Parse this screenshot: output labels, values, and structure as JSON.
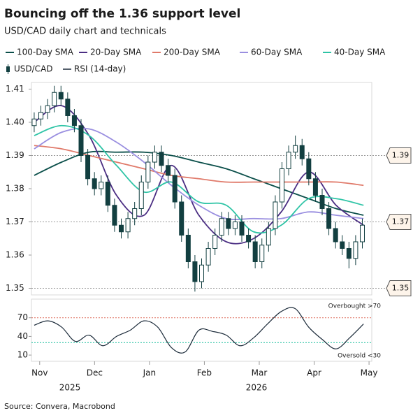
{
  "chart_data": [
    {
      "type": "candlestick",
      "title": "Bouncing off the 1.36 support level",
      "subtitle": "USD/CAD daily chart and technicals",
      "name": "USD/CAD",
      "color": "#123f40",
      "x": [
        -0.1,
        0.022,
        0.144,
        0.266,
        0.388,
        0.51,
        0.632,
        0.754,
        0.876,
        0.998,
        1.12,
        1.242,
        1.364,
        1.486,
        1.608,
        1.73,
        1.852,
        1.974,
        2.096,
        2.218,
        2.34,
        2.462,
        2.584,
        2.706,
        2.828,
        2.95,
        3.072,
        3.194,
        3.316,
        3.438,
        3.56,
        3.682,
        3.804,
        3.926,
        4.048,
        4.17,
        4.292,
        4.414,
        4.536,
        4.658,
        4.78,
        4.902,
        5.024,
        5.146,
        5.268,
        5.39,
        5.512,
        5.634,
        5.756,
        5.878
      ],
      "open": [
        1.399,
        1.401,
        1.403,
        1.405,
        1.409,
        1.407,
        1.402,
        1.399,
        1.39,
        1.383,
        1.38,
        1.382,
        1.375,
        1.369,
        1.367,
        1.371,
        1.374,
        1.382,
        1.388,
        1.391,
        1.387,
        1.384,
        1.376,
        1.366,
        1.358,
        1.352,
        1.357,
        1.362,
        1.366,
        1.371,
        1.368,
        1.37,
        1.366,
        1.364,
        1.358,
        1.363,
        1.368,
        1.376,
        1.386,
        1.391,
        1.393,
        1.389,
        1.383,
        1.378,
        1.374,
        1.368,
        1.364,
        1.362,
        1.359,
        1.364
      ],
      "high": [
        1.403,
        1.405,
        1.407,
        1.411,
        1.411,
        1.409,
        1.404,
        1.401,
        1.392,
        1.385,
        1.384,
        1.384,
        1.377,
        1.371,
        1.373,
        1.376,
        1.384,
        1.39,
        1.393,
        1.393,
        1.389,
        1.386,
        1.378,
        1.368,
        1.36,
        1.359,
        1.364,
        1.368,
        1.373,
        1.373,
        1.372,
        1.372,
        1.368,
        1.366,
        1.365,
        1.37,
        1.378,
        1.388,
        1.393,
        1.396,
        1.395,
        1.391,
        1.385,
        1.38,
        1.376,
        1.37,
        1.366,
        1.364,
        1.366,
        1.371
      ],
      "low": [
        1.397,
        1.399,
        1.401,
        1.403,
        1.405,
        1.4,
        1.397,
        1.388,
        1.381,
        1.378,
        1.378,
        1.373,
        1.367,
        1.365,
        1.365,
        1.369,
        1.372,
        1.38,
        1.386,
        1.385,
        1.382,
        1.374,
        1.364,
        1.356,
        1.349,
        1.35,
        1.355,
        1.36,
        1.364,
        1.366,
        1.366,
        1.364,
        1.362,
        1.356,
        1.356,
        1.361,
        1.366,
        1.374,
        1.384,
        1.389,
        1.387,
        1.381,
        1.376,
        1.372,
        1.366,
        1.362,
        1.36,
        1.356,
        1.357,
        1.362
      ],
      "close": [
        1.401,
        1.403,
        1.405,
        1.409,
        1.407,
        1.402,
        1.399,
        1.39,
        1.383,
        1.38,
        1.382,
        1.375,
        1.369,
        1.367,
        1.371,
        1.374,
        1.382,
        1.388,
        1.391,
        1.387,
        1.384,
        1.376,
        1.366,
        1.358,
        1.352,
        1.357,
        1.362,
        1.366,
        1.371,
        1.368,
        1.37,
        1.366,
        1.364,
        1.358,
        1.363,
        1.368,
        1.376,
        1.386,
        1.391,
        1.393,
        1.389,
        1.383,
        1.378,
        1.374,
        1.368,
        1.364,
        1.362,
        1.359,
        1.364,
        1.369
      ],
      "xlim": [
        -0.15,
        6.05
      ],
      "ylim": [
        1.348,
        1.412
      ],
      "yticks": [
        1.35,
        1.36,
        1.37,
        1.38,
        1.39,
        {
          "value": 1.4,
          "label": "1.40"
        },
        1.41
      ],
      "levels": [
        1.39,
        1.37,
        1.35
      ],
      "series": [
        {
          "name": "100-Day SMA",
          "color": "#0b4f4a",
          "x": [
            -0.1,
            0.4,
            0.9,
            1.4,
            1.9,
            2.4,
            2.9,
            3.4,
            3.9,
            4.4,
            4.9,
            5.4,
            5.9
          ],
          "values": [
            1.384,
            1.388,
            1.391,
            1.391,
            1.391,
            1.39,
            1.388,
            1.386,
            1.383,
            1.38,
            1.377,
            1.374,
            1.372
          ]
        },
        {
          "name": "20-Day SMA",
          "color": "#4b2e83",
          "x": [
            -0.1,
            0.4,
            0.9,
            1.4,
            1.9,
            2.4,
            2.9,
            3.4,
            3.9,
            4.4,
            4.9,
            5.4,
            5.9
          ],
          "values": [
            1.4,
            1.405,
            1.396,
            1.378,
            1.372,
            1.387,
            1.372,
            1.364,
            1.365,
            1.373,
            1.385,
            1.375,
            1.369
          ]
        },
        {
          "name": "200-Day SMA",
          "color": "#e07a6a",
          "x": [
            -0.1,
            0.4,
            0.9,
            1.4,
            1.9,
            2.4,
            2.9,
            3.4,
            3.9,
            4.4,
            4.9,
            5.4,
            5.9
          ],
          "values": [
            1.393,
            1.392,
            1.39,
            1.388,
            1.386,
            1.384,
            1.383,
            1.382,
            1.382,
            1.382,
            1.382,
            1.382,
            1.381
          ]
        },
        {
          "name": "60-Day SMA",
          "color": "#9a8fe0",
          "x": [
            -0.1,
            0.4,
            0.9,
            1.4,
            1.9,
            2.4,
            2.9,
            3.4,
            3.9,
            4.4,
            4.9,
            5.4,
            5.9
          ],
          "values": [
            1.392,
            1.397,
            1.398,
            1.394,
            1.388,
            1.381,
            1.375,
            1.371,
            1.371,
            1.371,
            1.373,
            1.372,
            1.371
          ]
        },
        {
          "name": "40-Day SMA",
          "color": "#2ec4a6",
          "x": [
            -0.1,
            0.4,
            0.9,
            1.4,
            1.9,
            2.4,
            2.9,
            3.4,
            3.9,
            4.4,
            4.9,
            5.4,
            5.9
          ],
          "values": [
            1.396,
            1.399,
            1.396,
            1.387,
            1.379,
            1.382,
            1.376,
            1.375,
            1.367,
            1.369,
            1.377,
            1.377,
            1.375
          ]
        }
      ]
    },
    {
      "type": "line",
      "series": [
        {
          "name": "RSI (14-day)",
          "color": "#1c2b3a",
          "x": [
            -0.1,
            0.15,
            0.4,
            0.65,
            0.9,
            1.15,
            1.4,
            1.65,
            1.9,
            2.15,
            2.4,
            2.65,
            2.9,
            3.15,
            3.4,
            3.65,
            3.9,
            4.15,
            4.4,
            4.65,
            4.9,
            5.15,
            5.4,
            5.65,
            5.9
          ],
          "values": [
            58,
            65,
            55,
            32,
            42,
            25,
            40,
            50,
            65,
            55,
            22,
            15,
            50,
            48,
            42,
            25,
            38,
            60,
            80,
            85,
            55,
            35,
            20,
            38,
            60
          ]
        }
      ],
      "xlim": [
        -0.15,
        6.05
      ],
      "ylim": [
        0,
        100
      ],
      "yticks": [
        10,
        40,
        70
      ],
      "bands": [
        {
          "value": 70,
          "label": "Overbought >70",
          "color": "#e07a6a"
        },
        {
          "value": 30,
          "label": "Oversold <30",
          "color": "#2ec4a6"
        }
      ],
      "xticks": [
        {
          "value": 0,
          "label": "Nov"
        },
        {
          "value": 1,
          "label": "Dec"
        },
        {
          "value": 2,
          "label": "Jan"
        },
        {
          "value": 3,
          "label": "Feb"
        },
        {
          "value": 4,
          "label": "Mar"
        },
        {
          "value": 5,
          "label": "Apr"
        },
        {
          "value": 6,
          "label": "May"
        }
      ],
      "year_labels": [
        {
          "value": 0.55,
          "label": "2025"
        },
        {
          "value": 3.95,
          "label": "2026"
        }
      ],
      "source": "Source: Convera, Macrobond"
    }
  ]
}
